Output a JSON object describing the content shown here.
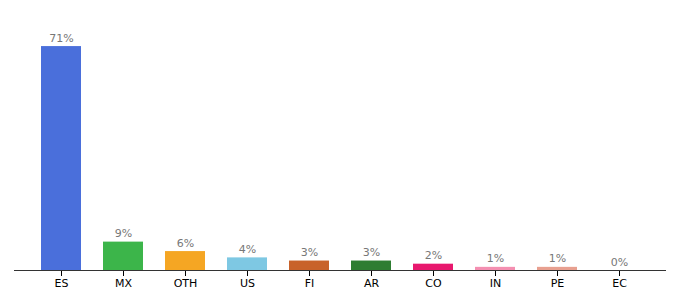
{
  "chart_data": {
    "type": "bar",
    "categories": [
      "ES",
      "MX",
      "OTH",
      "US",
      "FI",
      "AR",
      "CO",
      "IN",
      "PE",
      "EC"
    ],
    "values": [
      71,
      9,
      6,
      4,
      3,
      3,
      2,
      1,
      1,
      0
    ],
    "value_labels": [
      "71%",
      "9%",
      "6%",
      "4%",
      "3%",
      "3%",
      "2%",
      "1%",
      "1%",
      "0%"
    ],
    "colors": [
      "#4a6fdb",
      "#3cb54a",
      "#f5a623",
      "#7ec8e3",
      "#c8622a",
      "#2e7d32",
      "#e8186e",
      "#f48fb1",
      "#e8a090",
      "#ffb3c1"
    ],
    "ylim": [
      0,
      78
    ],
    "data_labels": true,
    "tick_labels": "x",
    "grid": false
  }
}
